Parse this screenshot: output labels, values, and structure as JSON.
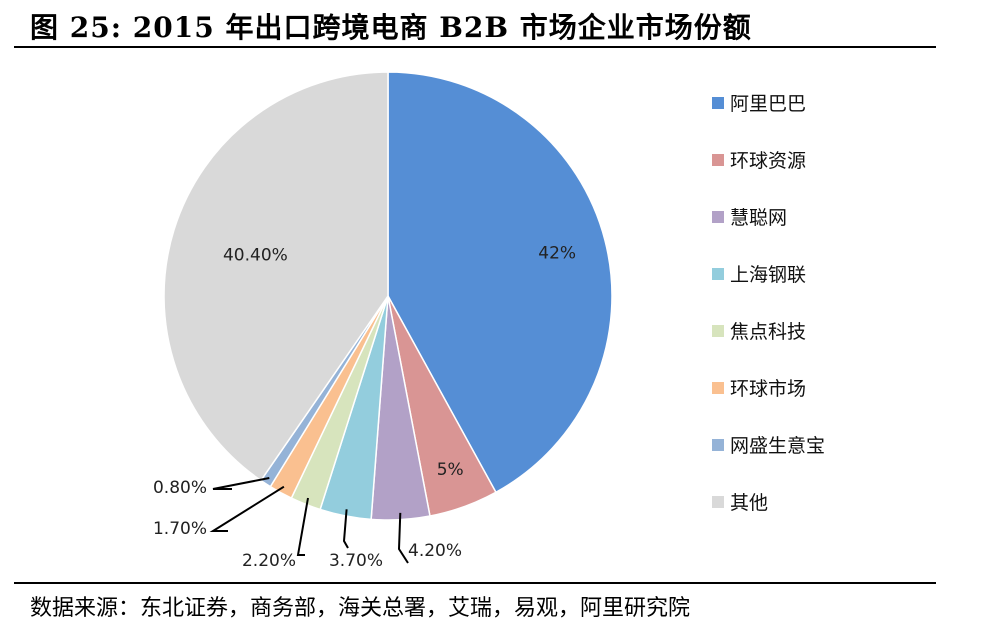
{
  "header": {
    "title": "图 25: 2015 年出口跨境电商 B2B 市场企业市场份额"
  },
  "footer": {
    "source": "数据来源：东北证券，商务部，海关总署，艾瑞，易观，阿里研究院"
  },
  "chart_data": {
    "type": "pie",
    "title": "",
    "legend_position": "right",
    "slices": [
      {
        "name": "阿里巴巴",
        "value": 42,
        "label": "42%",
        "color": "#558ED5"
      },
      {
        "name": "环球资源",
        "value": 5,
        "label": "5%",
        "color": "#D99594"
      },
      {
        "name": "慧聪网",
        "value": 4.2,
        "label": "4.20%",
        "color": "#B2A1C7"
      },
      {
        "name": "上海钢联",
        "value": 3.7,
        "label": "3.70%",
        "color": "#93CDDD"
      },
      {
        "name": "焦点科技",
        "value": 2.2,
        "label": "2.20%",
        "color": "#D7E4BD"
      },
      {
        "name": "环球市场",
        "value": 1.7,
        "label": "1.70%",
        "color": "#FAC090"
      },
      {
        "name": "网盛生意宝",
        "value": 0.8,
        "label": "0.80%",
        "color": "#95B3D7"
      },
      {
        "name": "其他",
        "value": 40.4,
        "label": "40.40%",
        "color": "#D9D9D9"
      }
    ]
  }
}
